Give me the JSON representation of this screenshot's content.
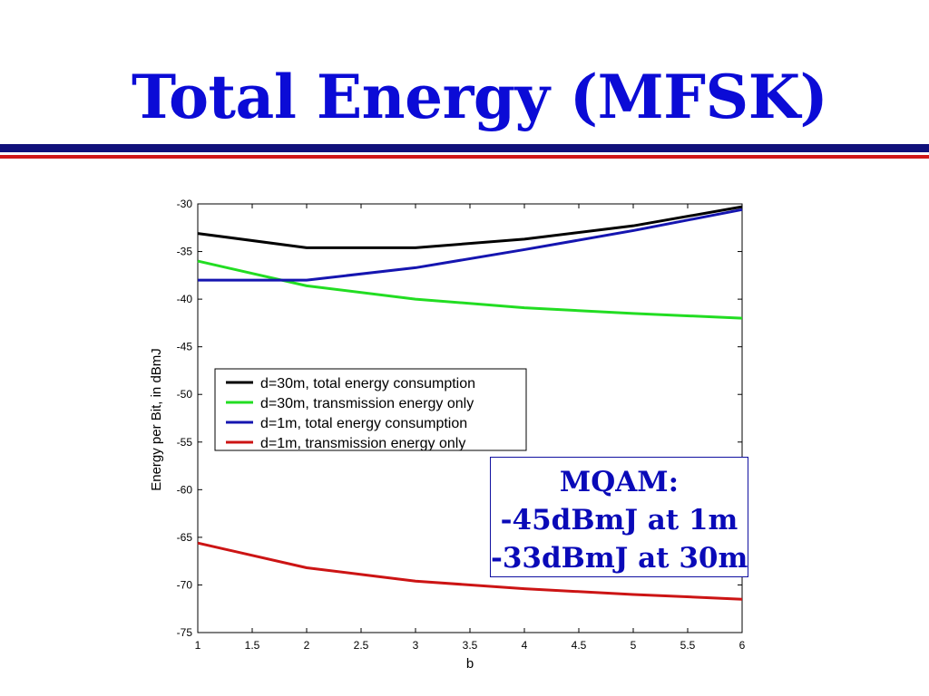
{
  "title": "Total Energy (MFSK)",
  "colors": {
    "title": "#0b0bd6",
    "rule_navy": "#10107a",
    "rule_red": "#d01818",
    "note_text": "#0a0ab8"
  },
  "note": {
    "lines": [
      "MQAM:",
      "-45dBmJ at 1m",
      "-33dBmJ at 30m"
    ]
  },
  "chart_data": {
    "type": "line",
    "xlabel": "b",
    "ylabel": "Energy per Bit, in dBmJ",
    "xlim": [
      1,
      6
    ],
    "ylim": [
      -75,
      -30
    ],
    "xticks": [
      "1",
      "1.5",
      "2",
      "2.5",
      "3",
      "3.5",
      "4",
      "4.5",
      "5",
      "5.5",
      "6"
    ],
    "yticks": [
      "-30",
      "-35",
      "-40",
      "-45",
      "-50",
      "-55",
      "-60",
      "-65",
      "-70",
      "-75"
    ],
    "grid": false,
    "legend_position": "upper-left",
    "x": [
      1,
      2,
      3,
      4,
      5,
      6
    ],
    "series": [
      {
        "name": "d=30m, total energy consumption",
        "color": "#000000",
        "values": [
          -33.1,
          -34.6,
          -34.6,
          -33.7,
          -32.3,
          -30.3
        ]
      },
      {
        "name": "d=30m, transmission energy only",
        "color": "#22dd22",
        "values": [
          -36.0,
          -38.6,
          -40.0,
          -40.9,
          -41.5,
          -42.0
        ]
      },
      {
        "name": "d=1m, total energy consumption",
        "color": "#1515b0",
        "values": [
          -38.0,
          -38.0,
          -36.7,
          -34.8,
          -32.8,
          -30.6
        ]
      },
      {
        "name": "d=1m, transmission energy only",
        "color": "#cc1414",
        "values": [
          -65.6,
          -68.2,
          -69.6,
          -70.4,
          -71.0,
          -71.5
        ]
      }
    ]
  }
}
